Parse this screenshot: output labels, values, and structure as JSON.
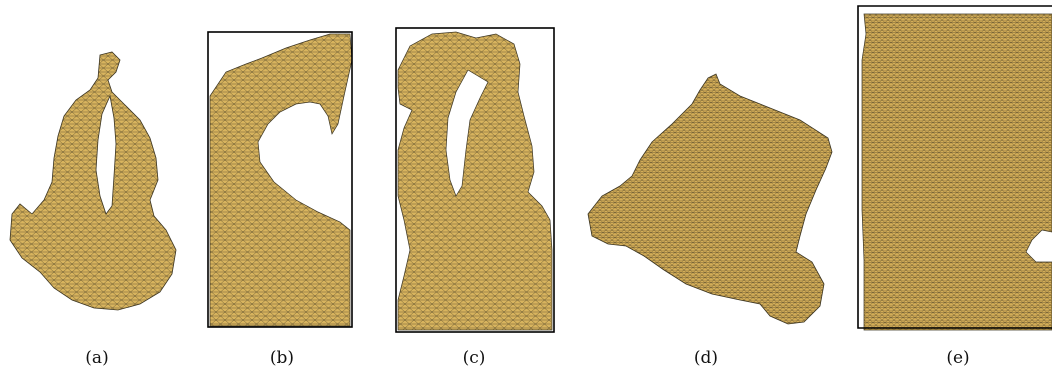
{
  "figure": {
    "panels": [
      {
        "id": "a",
        "label": "(a)",
        "framed": false
      },
      {
        "id": "b",
        "label": "(b)",
        "framed": true
      },
      {
        "id": "c",
        "label": "(c)",
        "framed": true
      },
      {
        "id": "d",
        "label": "(d)",
        "framed": false
      },
      {
        "id": "e",
        "label": "(e)",
        "framed": true
      }
    ],
    "mesh_fill_color": "#D8B45E",
    "mesh_edge_color": "#3a3320",
    "frame_color": "#000000"
  }
}
